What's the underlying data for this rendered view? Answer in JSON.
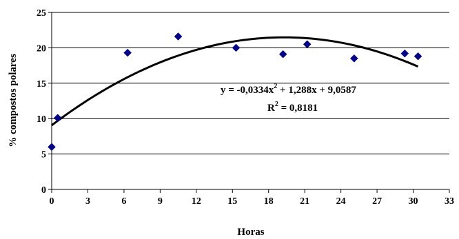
{
  "chart_data": {
    "type": "scatter",
    "xlabel": "Horas",
    "ylabel": "% compostos polares",
    "xlim": [
      0,
      33
    ],
    "ylim": [
      0,
      25
    ],
    "xticks": [
      0,
      3,
      6,
      9,
      12,
      15,
      18,
      21,
      24,
      27,
      30,
      33
    ],
    "yticks": [
      0,
      5,
      10,
      15,
      20,
      25
    ],
    "grid": "horizontal",
    "marker_color": "#00008B",
    "points": [
      {
        "x": 0,
        "y": 6.0
      },
      {
        "x": 0.5,
        "y": 10.1
      },
      {
        "x": 6.3,
        "y": 19.3
      },
      {
        "x": 10.5,
        "y": 21.6
      },
      {
        "x": 15.3,
        "y": 20.0
      },
      {
        "x": 19.2,
        "y": 19.1
      },
      {
        "x": 21.2,
        "y": 20.5
      },
      {
        "x": 25.1,
        "y": 18.5
      },
      {
        "x": 29.3,
        "y": 19.2
      },
      {
        "x": 30.4,
        "y": 18.8
      }
    ],
    "trendline": {
      "type": "polynomial",
      "coefficients": [
        -0.0334,
        1.288,
        9.0587
      ],
      "x_range": [
        0,
        30.4
      ],
      "equation_label": {
        "prefix": "y = -0,0334x",
        "sup": "2",
        "suffix": " + 1,288x + 9,0587"
      },
      "r2_label": {
        "prefix": "R",
        "sup": "2",
        "suffix": " = 0,8181"
      }
    }
  }
}
